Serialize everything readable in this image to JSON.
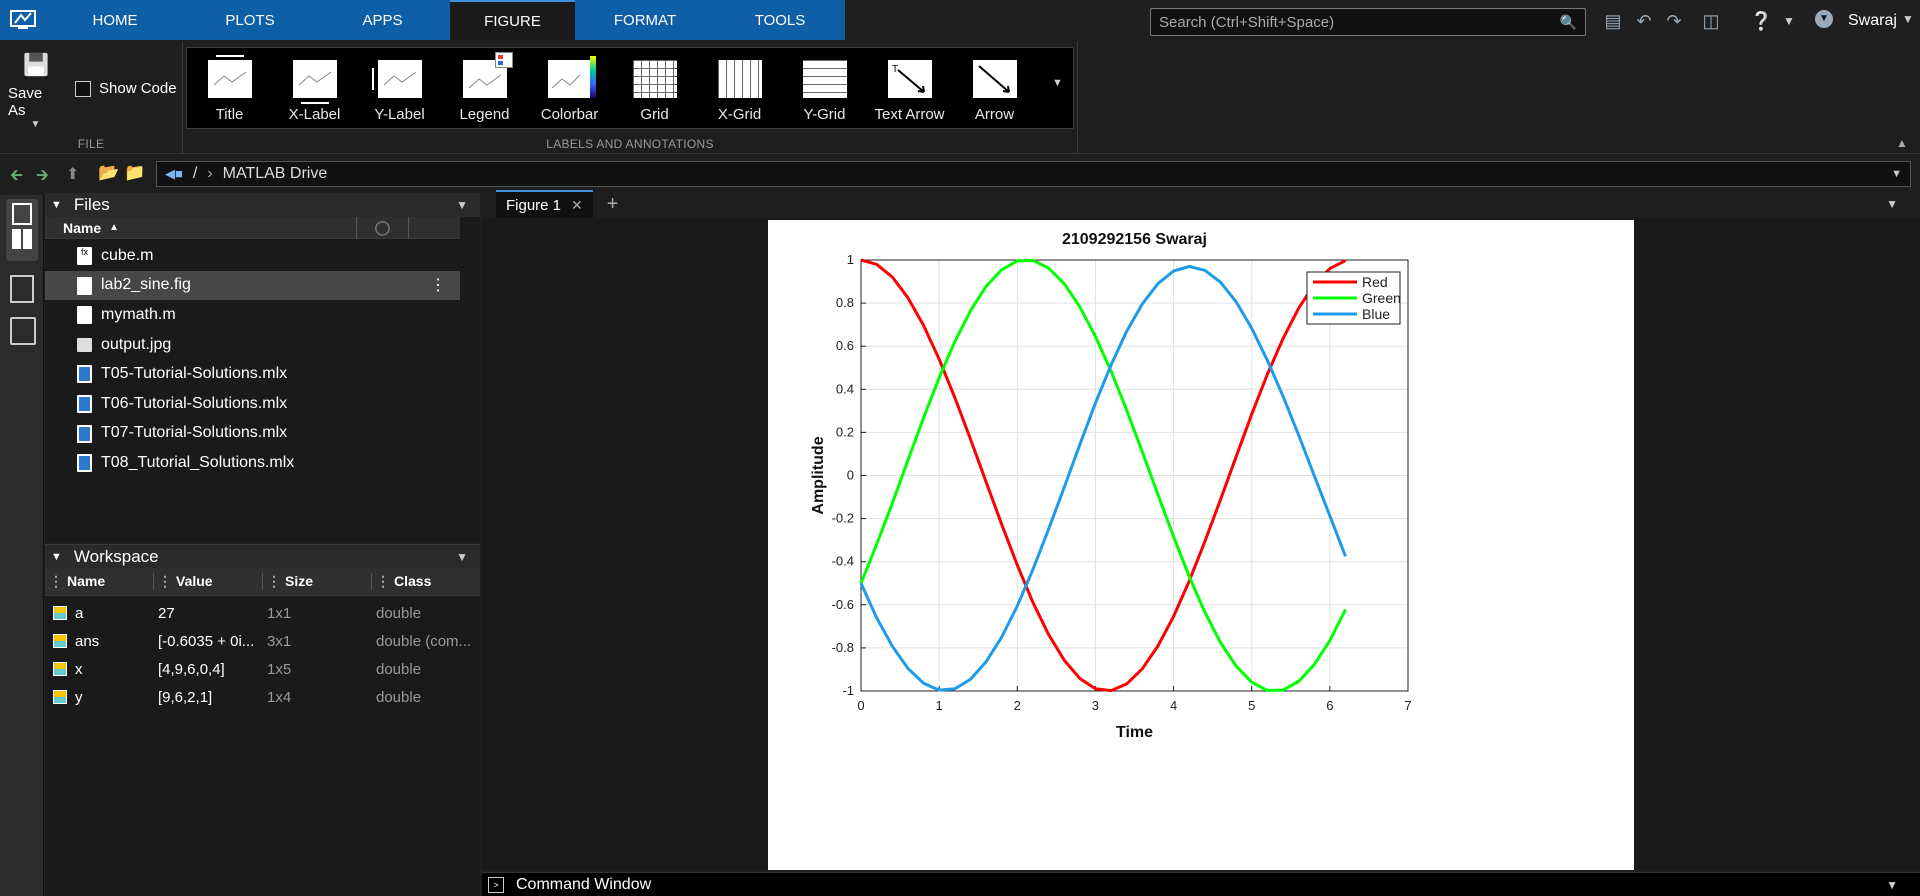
{
  "tabs": [
    {
      "label": "HOME"
    },
    {
      "label": "PLOTS"
    },
    {
      "label": "APPS"
    },
    {
      "label": "FIGURE"
    },
    {
      "label": "FORMAT"
    },
    {
      "label": "TOOLS"
    }
  ],
  "search": {
    "placeholder": "Search (Ctrl+Shift+Space)"
  },
  "user": {
    "name": "Swaraj"
  },
  "ribbon": {
    "file_group": {
      "label": "FILE",
      "save_as": "Save As",
      "show_code": "Show Code"
    },
    "labels_group": {
      "label": "LABELS AND ANNOTATIONS",
      "items": [
        {
          "label": "Title"
        },
        {
          "label": "X-Label"
        },
        {
          "label": "Y-Label"
        },
        {
          "label": "Legend"
        },
        {
          "label": "Colorbar"
        },
        {
          "label": "Grid"
        },
        {
          "label": "X-Grid"
        },
        {
          "label": "Y-Grid"
        },
        {
          "label": "Text Arrow"
        },
        {
          "label": "Arrow"
        }
      ]
    }
  },
  "address": {
    "root": "/",
    "path": "MATLAB Drive"
  },
  "files": {
    "title": "Files",
    "column_name": "Name",
    "items": [
      {
        "name": "cube.m",
        "type": "function"
      },
      {
        "name": "lab2_sine.fig",
        "type": "fig",
        "selected": true
      },
      {
        "name": "mymath.m",
        "type": "script"
      },
      {
        "name": "output.jpg",
        "type": "image"
      },
      {
        "name": "T05-Tutorial-Solutions.mlx",
        "type": "mlx"
      },
      {
        "name": "T06-Tutorial-Solutions.mlx",
        "type": "mlx"
      },
      {
        "name": "T07-Tutorial-Solutions.mlx",
        "type": "mlx"
      },
      {
        "name": "T08_Tutorial_Solutions.mlx",
        "type": "mlx"
      }
    ]
  },
  "workspace": {
    "title": "Workspace",
    "columns": [
      "Name",
      "Value",
      "Size",
      "Class"
    ],
    "rows": [
      [
        "a",
        "27",
        "1x1",
        "double"
      ],
      [
        "ans",
        "[-0.6035 + 0i...",
        "3x1",
        "double (com..."
      ],
      [
        "x",
        "[4,9,6,0,4]",
        "1x5",
        "double"
      ],
      [
        "y",
        "[9,6,2,1]",
        "1x4",
        "double"
      ]
    ]
  },
  "figure": {
    "tab_label": "Figure 1"
  },
  "command_window": {
    "label": "Command Window"
  },
  "chart_data": {
    "type": "line",
    "title": "2109292156 Swaraj",
    "xlabel": "Time",
    "ylabel": "Amplitude",
    "xlim": [
      0,
      7
    ],
    "ylim": [
      -1,
      1
    ],
    "xticks": [
      "0",
      "1",
      "2",
      "3",
      "4",
      "5",
      "6",
      "7"
    ],
    "yticks": [
      "-1",
      "-0.8",
      "-0.6",
      "-0.4",
      "-0.2",
      "0",
      "0.2",
      "0.4",
      "0.6",
      "0.8",
      "1"
    ],
    "grid": true,
    "legend_position": "top-right",
    "x": [
      0,
      0.2,
      0.4,
      0.6,
      0.8,
      1.0,
      1.2,
      1.4,
      1.6,
      1.8,
      2.0,
      2.2,
      2.4,
      2.6,
      2.8,
      3.0,
      3.2,
      3.4,
      3.6,
      3.8,
      4.0,
      4.2,
      4.4,
      4.6,
      4.8,
      5.0,
      5.2,
      5.4,
      5.6,
      5.8,
      6.0,
      6.2
    ],
    "series": [
      {
        "name": "Red",
        "color": "#ff0000",
        "values": [
          1.0,
          0.98,
          0.921,
          0.825,
          0.697,
          0.54,
          0.362,
          0.17,
          -0.029,
          -0.227,
          -0.416,
          -0.589,
          -0.737,
          -0.857,
          -0.942,
          -0.99,
          -0.998,
          -0.967,
          -0.897,
          -0.791,
          -0.654,
          -0.49,
          -0.307,
          -0.112,
          0.087,
          0.284,
          0.469,
          0.635,
          0.776,
          0.886,
          0.96,
          0.997
        ]
      },
      {
        "name": "Green",
        "color": "#00ff00",
        "values": [
          -0.5,
          -0.32,
          -0.129,
          0.07,
          0.267,
          0.453,
          0.621,
          0.764,
          0.877,
          0.955,
          0.996,
          0.998,
          0.963,
          0.89,
          0.783,
          0.646,
          0.484,
          0.303,
          0.11,
          -0.088,
          -0.284,
          -0.468,
          -0.634,
          -0.775,
          -0.884,
          -0.959,
          -0.997,
          -0.996,
          -0.956,
          -0.878,
          -0.766,
          -0.622
        ]
      },
      {
        "name": "Blue",
        "color": "#1e9be8",
        "values": [
          -0.5,
          -0.66,
          -0.792,
          -0.895,
          -0.964,
          -0.996,
          -0.99,
          -0.946,
          -0.865,
          -0.75,
          -0.605,
          -0.436,
          -0.25,
          -0.055,
          0.143,
          0.336,
          0.513,
          0.669,
          0.796,
          0.89,
          0.949,
          0.97,
          0.952,
          0.897,
          0.806,
          0.683,
          0.535,
          0.368,
          0.188,
          0.0,
          -0.188,
          -0.375
        ]
      }
    ]
  }
}
